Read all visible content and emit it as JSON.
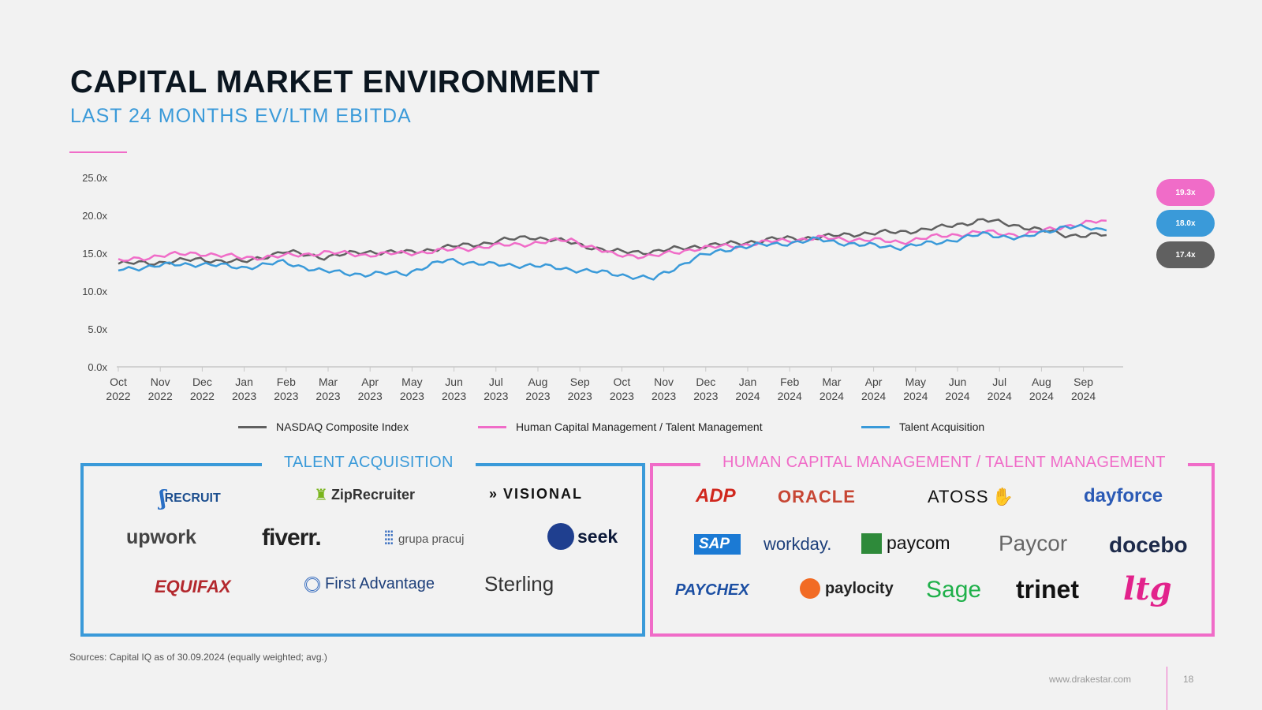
{
  "header": {
    "title": "CAPITAL MARKET ENVIRONMENT",
    "subtitle": "LAST 24 MONTHS EV/LTM EBITDA"
  },
  "colors": {
    "nasdaq": "#606060",
    "hcm": "#f06cc8",
    "ta": "#3a9ad9",
    "title_dark": "#0b1620",
    "accent_blue": "#3a9ad9",
    "accent_pink": "#f06cc8"
  },
  "chart_data": {
    "type": "line",
    "ylim": [
      0,
      25
    ],
    "y_ticks": [
      "25.0x",
      "20.0x",
      "15.0x",
      "10.0x",
      "5.0x",
      "0.0x"
    ],
    "x_ticks": [
      [
        "Oct",
        "2022"
      ],
      [
        "Nov",
        "2022"
      ],
      [
        "Dec",
        "2022"
      ],
      [
        "Jan",
        "2023"
      ],
      [
        "Feb",
        "2023"
      ],
      [
        "Mar",
        "2023"
      ],
      [
        "Apr",
        "2023"
      ],
      [
        "May",
        "2023"
      ],
      [
        "Jun",
        "2023"
      ],
      [
        "Jul",
        "2023"
      ],
      [
        "Aug",
        "2023"
      ],
      [
        "Sep",
        "2023"
      ],
      [
        "Oct",
        "2023"
      ],
      [
        "Nov",
        "2023"
      ],
      [
        "Dec",
        "2023"
      ],
      [
        "Jan",
        "2024"
      ],
      [
        "Feb",
        "2024"
      ],
      [
        "Mar",
        "2024"
      ],
      [
        "Apr",
        "2024"
      ],
      [
        "May",
        "2024"
      ],
      [
        "Jun",
        "2024"
      ],
      [
        "Jul",
        "2024"
      ],
      [
        "Aug",
        "2024"
      ],
      [
        "Sep",
        "2024"
      ]
    ],
    "x_months": [
      "2022-10",
      "2022-11",
      "2022-12",
      "2023-01",
      "2023-02",
      "2023-03",
      "2023-04",
      "2023-05",
      "2023-06",
      "2023-07",
      "2023-08",
      "2023-09",
      "2023-10",
      "2023-11",
      "2023-12",
      "2024-01",
      "2024-02",
      "2024-03",
      "2024-04",
      "2024-05",
      "2024-06",
      "2024-07",
      "2024-08",
      "2024-09",
      "2024-09-30"
    ],
    "series": [
      {
        "name": "NASDAQ Composite Index",
        "color": "#606060",
        "values": [
          13.6,
          13.8,
          14.2,
          13.8,
          15.2,
          14.5,
          15.2,
          15.1,
          15.8,
          16.4,
          17.2,
          16.4,
          15.2,
          15.2,
          15.9,
          16.3,
          16.9,
          17.1,
          17.6,
          17.8,
          18.4,
          19.4,
          18.5,
          17.4,
          17.4
        ]
      },
      {
        "name": "Human Capital Management / Talent Management",
        "color": "#f06cc8",
        "values": [
          13.9,
          14.7,
          15.0,
          14.4,
          14.6,
          15.1,
          14.8,
          15.0,
          15.4,
          15.9,
          16.3,
          16.8,
          14.8,
          14.6,
          15.6,
          16.0,
          16.6,
          17.0,
          16.8,
          16.5,
          17.3,
          17.8,
          17.4,
          18.6,
          19.3
        ]
      },
      {
        "name": "Talent Acquisition",
        "color": "#3a9ad9",
        "values": [
          12.8,
          13.4,
          13.6,
          13.1,
          13.8,
          12.6,
          12.2,
          12.4,
          14.1,
          13.5,
          13.4,
          12.9,
          12.3,
          11.6,
          14.4,
          15.8,
          16.2,
          16.8,
          16.1,
          15.8,
          16.5,
          17.5,
          17.0,
          18.6,
          18.0
        ]
      }
    ],
    "end_labels": [
      {
        "text": "19.3x",
        "color": "#f06cc8"
      },
      {
        "text": "18.0x",
        "color": "#3a9ad9"
      },
      {
        "text": "17.4x",
        "color": "#606060"
      }
    ],
    "legend_position": "bottom"
  },
  "ta_box": {
    "title": "TALENT ACQUISITION",
    "logos": {
      "recruit": "RECRUIT",
      "ziprecruiter": "ZipRecruiter",
      "visional": "VISIONAL",
      "upwork": "upwork",
      "fiverr": "fiverr.",
      "grupa": "grupa pracuj",
      "seek": "seek",
      "equifax": "EQUIFAX",
      "firstadv": "First Advantage",
      "sterling": "Sterling"
    }
  },
  "hcm_box": {
    "title": "HUMAN CAPITAL MANAGEMENT / TALENT MANAGEMENT",
    "logos": {
      "adp": "ADP",
      "oracle": "ORACLE",
      "atoss": "ATOSS",
      "dayforce": "dayforce",
      "sap": "SAP",
      "workday": "workday.",
      "paycom": "paycom",
      "paycor": "Paycor",
      "docebo": "docebo",
      "paychex": "PAYCHEX",
      "paylocity": "paylocity",
      "sage": "Sage",
      "trinet": "trinet",
      "ltg": "ltg"
    }
  },
  "footer": {
    "sources": "Sources: Capital IQ as of 30.09.2024 (equally weighted; avg.)",
    "url": "www.drakestar.com",
    "page": "18"
  }
}
